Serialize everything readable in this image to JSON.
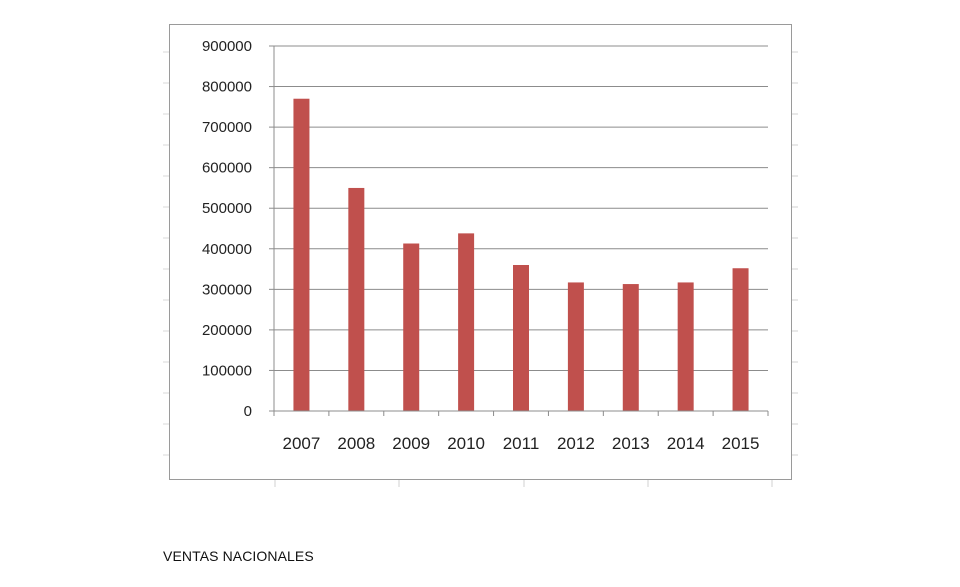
{
  "chart_data": {
    "type": "bar",
    "categories": [
      "2007",
      "2008",
      "2009",
      "2010",
      "2011",
      "2012",
      "2013",
      "2014",
      "2015"
    ],
    "values": [
      770000,
      550000,
      413000,
      438000,
      360000,
      317000,
      313000,
      317000,
      352000
    ],
    "title": "",
    "xlabel": "",
    "ylabel": "",
    "ylim": [
      0,
      900000
    ],
    "yticks": [
      "0",
      "100000",
      "200000",
      "300000",
      "400000",
      "500000",
      "600000",
      "700000",
      "800000",
      "900000"
    ],
    "grid": true,
    "legend": "none",
    "colors": {
      "bar": "#c0504d",
      "grid": "#8c8c8c",
      "axis": "#8c8c8c"
    }
  },
  "caption": "VENTAS NACIONALES"
}
